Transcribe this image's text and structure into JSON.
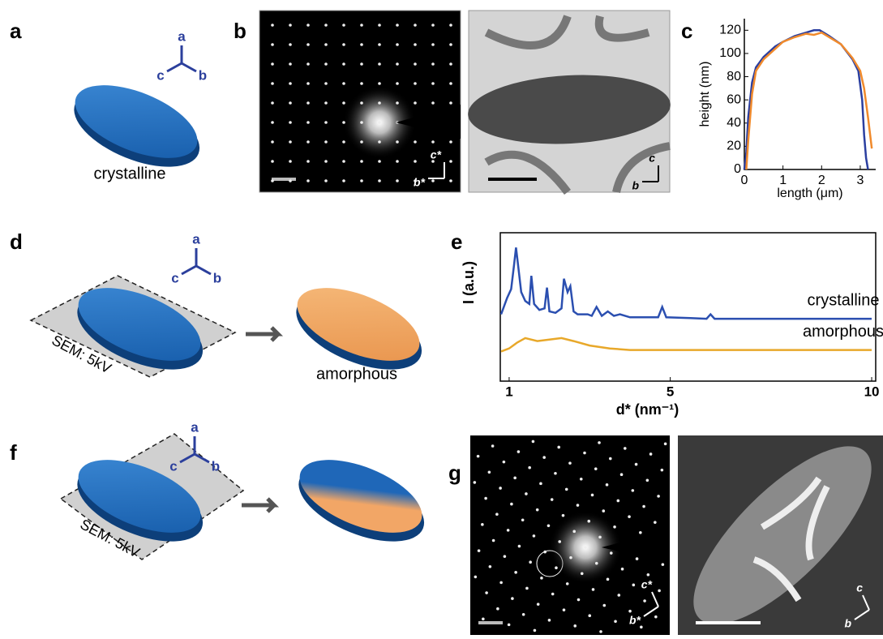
{
  "panels": {
    "a": {
      "label": "a",
      "axes": [
        "a",
        "c",
        "b"
      ],
      "caption": "crystalline"
    },
    "b": {
      "label": "b",
      "diffraction_axes": [
        "c*",
        "b*"
      ],
      "image_axes": [
        "c",
        "b"
      ]
    },
    "d": {
      "label": "d",
      "axes": [
        "a",
        "c",
        "b"
      ],
      "plane": "SEM: 5kV",
      "caption": "amorphous"
    },
    "f": {
      "label": "f",
      "axes": [
        "a",
        "c",
        "b"
      ],
      "plane": "SEM: 5kV"
    },
    "g": {
      "label": "g",
      "diffraction_axes": [
        "c*",
        "b*"
      ],
      "image_axes": [
        "c",
        "b"
      ]
    }
  },
  "chart_data": [
    {
      "type": "line",
      "label": "c",
      "xlabel": "length (μm)",
      "ylabel": "height (nm)",
      "xlim": [
        0,
        3.4
      ],
      "ylim": [
        0,
        130
      ],
      "xticks": [
        0,
        1,
        2,
        3
      ],
      "yticks": [
        0,
        20,
        40,
        60,
        80,
        100,
        120
      ],
      "series": [
        {
          "color": "#2b3fa0",
          "x": [
            0,
            0.05,
            0.1,
            0.2,
            0.3,
            0.5,
            0.8,
            1.0,
            1.3,
            1.6,
            1.8,
            1.95,
            2.2,
            2.5,
            2.8,
            2.95,
            3.05,
            3.1,
            3.15,
            3.2
          ],
          "values": [
            0,
            15,
            45,
            75,
            88,
            97,
            106,
            110,
            115,
            118,
            120,
            120,
            115,
            108,
            95,
            85,
            60,
            30,
            10,
            0
          ]
        },
        {
          "color": "#f08a2c",
          "x": [
            0.05,
            0.1,
            0.2,
            0.3,
            0.5,
            0.8,
            1.0,
            1.3,
            1.6,
            1.8,
            2.0,
            2.2,
            2.5,
            2.8,
            3.0,
            3.1,
            3.2,
            3.3
          ],
          "values": [
            0,
            25,
            65,
            85,
            95,
            104,
            110,
            114,
            117,
            116,
            118,
            114,
            108,
            96,
            85,
            70,
            45,
            18
          ]
        }
      ]
    },
    {
      "type": "line",
      "label": "e",
      "xlabel": "d* (nm⁻¹)",
      "ylabel": "I (a.u.)",
      "xlim": [
        0.78,
        10.1
      ],
      "ylim": [
        0,
        10
      ],
      "xticks": [
        1,
        5,
        10
      ],
      "series": [
        {
          "name": "crystalline",
          "color": "#2b4fb0",
          "x": [
            0.8,
            0.95,
            1.05,
            1.12,
            1.17,
            1.23,
            1.3,
            1.4,
            1.5,
            1.55,
            1.62,
            1.75,
            1.88,
            1.94,
            2.0,
            2.15,
            2.3,
            2.36,
            2.45,
            2.52,
            2.6,
            2.7,
            2.95,
            3.05,
            3.17,
            3.3,
            3.45,
            3.6,
            3.75,
            4.0,
            4.4,
            4.7,
            4.8,
            4.9,
            5.5,
            5.9,
            6.0,
            6.1,
            7,
            8,
            9,
            10
          ],
          "values": [
            4.5,
            5.6,
            6.2,
            7.8,
            9.0,
            7.6,
            6.0,
            5.4,
            5.2,
            7.1,
            5.2,
            4.8,
            4.9,
            6.3,
            4.7,
            4.6,
            4.9,
            6.9,
            6.0,
            6.4,
            4.7,
            4.5,
            4.5,
            4.4,
            5.0,
            4.4,
            4.7,
            4.4,
            4.5,
            4.3,
            4.3,
            4.3,
            5.0,
            4.3,
            4.25,
            4.2,
            4.5,
            4.2,
            4.2,
            4.2,
            4.2,
            4.2
          ]
        },
        {
          "name": "amorphous",
          "color": "#e8a82a",
          "x": [
            0.8,
            1.0,
            1.2,
            1.4,
            1.7,
            2.0,
            2.3,
            2.6,
            3.0,
            3.5,
            4.0,
            5,
            6,
            7,
            8,
            9,
            10
          ],
          "values": [
            2.0,
            2.2,
            2.6,
            2.9,
            2.7,
            2.8,
            2.9,
            2.7,
            2.4,
            2.2,
            2.1,
            2.1,
            2.1,
            2.1,
            2.1,
            2.1,
            2.1
          ]
        }
      ]
    }
  ]
}
